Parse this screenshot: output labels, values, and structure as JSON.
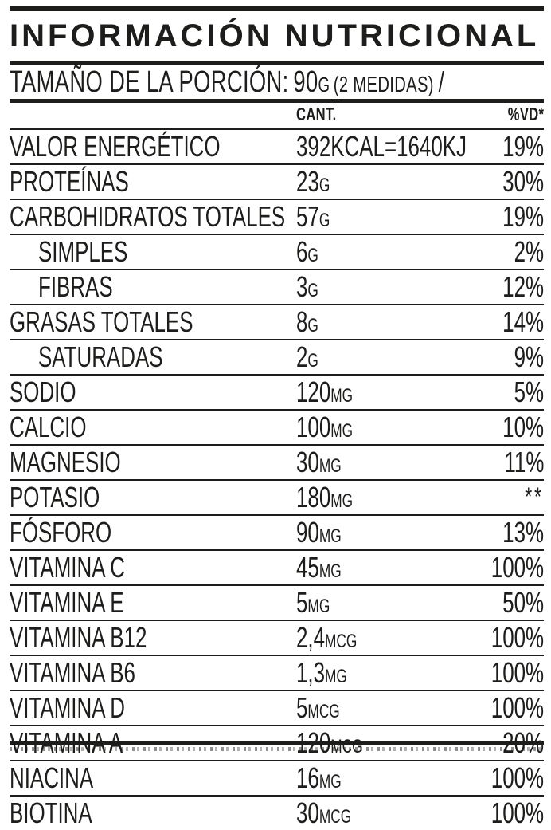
{
  "header": {
    "title": "INFORMACIÓN NUTRICIONAL"
  },
  "serving": {
    "label": "TAMAÑO DE LA PORCIÓN:",
    "amount": "90",
    "amount_unit": "G",
    "measure_note": "(2 MEDIDAS)",
    "separator": "/"
  },
  "table": {
    "columns": {
      "amount": "CANT.",
      "daily_value": "%VD*"
    },
    "rows": [
      {
        "label": "VALOR ENERGÉTICO",
        "indent": false,
        "amount": "392KCAL=1640KJ",
        "unit": "",
        "dv": "19%"
      },
      {
        "label": "PROTEÍNAS",
        "indent": false,
        "amount": "23",
        "unit": "G",
        "dv": "30%"
      },
      {
        "label": "CARBOHIDRATOS TOTALES",
        "indent": false,
        "amount": "57",
        "unit": "G",
        "dv": "19%"
      },
      {
        "label": "SIMPLES",
        "indent": true,
        "amount": "6",
        "unit": "G",
        "dv": "2%"
      },
      {
        "label": "FIBRAS",
        "indent": true,
        "amount": "3",
        "unit": "G",
        "dv": "12%"
      },
      {
        "label": "GRASAS TOTALES",
        "indent": false,
        "amount": "8",
        "unit": "G",
        "dv": "14%"
      },
      {
        "label": "SATURADAS",
        "indent": true,
        "amount": "2",
        "unit": "G",
        "dv": "9%"
      },
      {
        "label": "SODIO",
        "indent": false,
        "amount": "120",
        "unit": "MG",
        "dv": "5%"
      },
      {
        "label": "CALCIO",
        "indent": false,
        "amount": "100",
        "unit": "MG",
        "dv": "10%"
      },
      {
        "label": "MAGNESIO",
        "indent": false,
        "amount": "30",
        "unit": "MG",
        "dv": "11%"
      },
      {
        "label": "POTASIO",
        "indent": false,
        "amount": "180",
        "unit": "MG",
        "dv": "**"
      },
      {
        "label": "FÓSFORO",
        "indent": false,
        "amount": "90",
        "unit": "MG",
        "dv": "13%"
      },
      {
        "label": "VITAMINA C",
        "indent": false,
        "amount": "45",
        "unit": "MG",
        "dv": "100%"
      },
      {
        "label": "VITAMINA E",
        "indent": false,
        "amount": "5",
        "unit": "MG",
        "dv": "50%"
      },
      {
        "label": "VITAMINA B12",
        "indent": false,
        "amount": "2,4",
        "unit": "MCG",
        "dv": "100%"
      },
      {
        "label": "VITAMINA B6",
        "indent": false,
        "amount": "1,3",
        "unit": "MG",
        "dv": "100%"
      },
      {
        "label": "VITAMINA D",
        "indent": false,
        "amount": "5",
        "unit": "MCG",
        "dv": "100%"
      },
      {
        "label": "VITAMINA A",
        "indent": false,
        "amount": "120",
        "unit": "MCG",
        "dv": "20%"
      },
      {
        "label": "NIACINA",
        "indent": false,
        "amount": "16",
        "unit": "MG",
        "dv": "100%"
      },
      {
        "label": "BIOTINA",
        "indent": false,
        "amount": "30",
        "unit": "MCG",
        "dv": "100%"
      }
    ]
  },
  "colors": {
    "ink": "#1d1d1b",
    "paper": "#ffffff"
  }
}
